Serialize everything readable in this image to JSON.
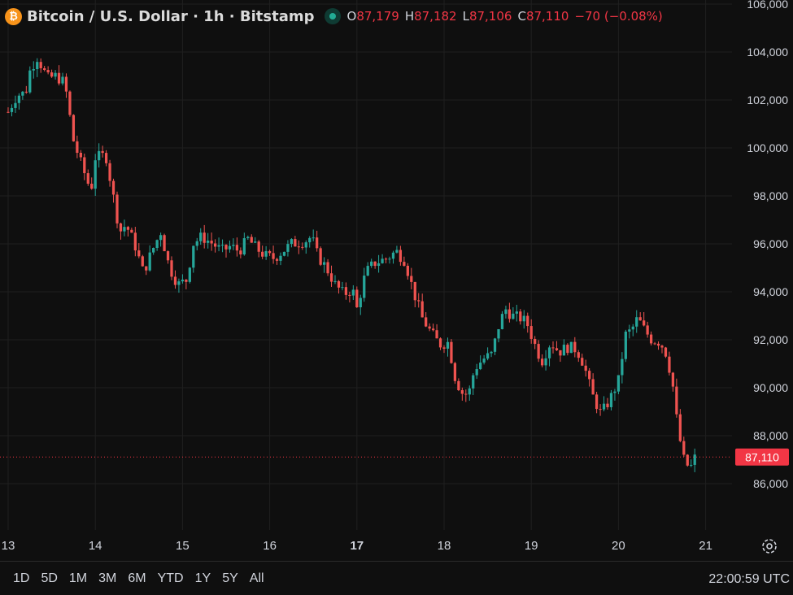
{
  "header": {
    "icon_glyph": "₿",
    "title": "Bitcoin / U.S. Dollar · 1h · Bitstamp",
    "ohlc": {
      "o_label": "O",
      "o_value": "87,179",
      "h_label": "H",
      "h_value": "87,182",
      "l_label": "L",
      "l_value": "87,106",
      "c_label": "C",
      "c_value": "87,110",
      "change": "−70 (−0.08%)"
    }
  },
  "colors": {
    "background": "#0f0f0f",
    "grid": "#1f1f1f",
    "up": "#26a69a",
    "down": "#ef5350",
    "axis_text": "#d1d4dc",
    "price_label_bg": "#f23645"
  },
  "price_axis": {
    "ticks": [
      "106,000",
      "104,000",
      "102,000",
      "100,000",
      "98,000",
      "96,000",
      "94,000",
      "92,000",
      "90,000",
      "88,000",
      "86,000"
    ],
    "current_price_label": "87,110"
  },
  "time_axis": {
    "ticks": [
      "13",
      "14",
      "15",
      "16",
      "17",
      "18",
      "19",
      "20",
      "21"
    ],
    "bold_tick": "17"
  },
  "chart_data": {
    "type": "candlestick",
    "symbol": "Bitcoin / U.S. Dollar",
    "interval": "1h",
    "exchange": "Bitstamp",
    "ylim": [
      85000,
      106500
    ],
    "last_price": 87110,
    "day_ticks": [
      13,
      14,
      15,
      16,
      17,
      18,
      19,
      20,
      21
    ],
    "keypoints": [
      [
        13.0,
        101500
      ],
      [
        13.1,
        102200
      ],
      [
        13.2,
        102300
      ],
      [
        13.25,
        103200
      ],
      [
        13.33,
        103800
      ],
      [
        13.4,
        103300
      ],
      [
        13.45,
        102900
      ],
      [
        13.55,
        103000
      ],
      [
        13.65,
        102700
      ],
      [
        13.75,
        100300
      ],
      [
        13.85,
        99200
      ],
      [
        13.95,
        98200
      ],
      [
        14.0,
        99600
      ],
      [
        14.12,
        99700
      ],
      [
        14.18,
        98500
      ],
      [
        14.28,
        96500
      ],
      [
        14.35,
        96800
      ],
      [
        14.45,
        96000
      ],
      [
        14.55,
        94800
      ],
      [
        14.65,
        95700
      ],
      [
        14.75,
        96500
      ],
      [
        14.85,
        95000
      ],
      [
        14.95,
        94300
      ],
      [
        15.05,
        94500
      ],
      [
        15.12,
        96000
      ],
      [
        15.22,
        96300
      ],
      [
        15.35,
        96000
      ],
      [
        15.45,
        95700
      ],
      [
        15.55,
        95900
      ],
      [
        15.65,
        95700
      ],
      [
        15.75,
        96200
      ],
      [
        15.85,
        95800
      ],
      [
        15.95,
        95500
      ],
      [
        16.05,
        95400
      ],
      [
        16.15,
        95700
      ],
      [
        16.25,
        96000
      ],
      [
        16.4,
        96100
      ],
      [
        16.48,
        96300
      ],
      [
        16.55,
        95500
      ],
      [
        16.65,
        95000
      ],
      [
        16.75,
        94300
      ],
      [
        16.85,
        93900
      ],
      [
        16.95,
        94100
      ],
      [
        17.0,
        93300
      ],
      [
        17.1,
        94800
      ],
      [
        17.2,
        95200
      ],
      [
        17.35,
        95400
      ],
      [
        17.45,
        95700
      ],
      [
        17.55,
        95300
      ],
      [
        17.65,
        94000
      ],
      [
        17.75,
        92900
      ],
      [
        17.85,
        92300
      ],
      [
        17.95,
        91800
      ],
      [
        18.05,
        91900
      ],
      [
        18.12,
        90500
      ],
      [
        18.2,
        89800
      ],
      [
        18.28,
        89700
      ],
      [
        18.35,
        90800
      ],
      [
        18.45,
        91200
      ],
      [
        18.55,
        91400
      ],
      [
        18.62,
        92500
      ],
      [
        18.7,
        93300
      ],
      [
        18.78,
        93000
      ],
      [
        18.88,
        92900
      ],
      [
        18.95,
        92700
      ],
      [
        19.05,
        91700
      ],
      [
        19.12,
        91100
      ],
      [
        19.22,
        91900
      ],
      [
        19.32,
        91500
      ],
      [
        19.42,
        91700
      ],
      [
        19.52,
        91600
      ],
      [
        19.6,
        91000
      ],
      [
        19.7,
        89700
      ],
      [
        19.8,
        88900
      ],
      [
        19.9,
        89500
      ],
      [
        20.0,
        90300
      ],
      [
        20.08,
        92200
      ],
      [
        20.15,
        92400
      ],
      [
        20.22,
        92900
      ],
      [
        20.3,
        92400
      ],
      [
        20.38,
        92000
      ],
      [
        20.48,
        91900
      ],
      [
        20.55,
        91400
      ],
      [
        20.62,
        90200
      ],
      [
        20.68,
        88300
      ],
      [
        20.75,
        87000
      ],
      [
        20.82,
        86600
      ],
      [
        20.88,
        87110
      ]
    ]
  },
  "bottom_bar": {
    "ranges": [
      "1D",
      "5D",
      "1M",
      "3M",
      "6M",
      "YTD",
      "1Y",
      "5Y",
      "All"
    ],
    "clock": "22:00:59 UTC"
  }
}
